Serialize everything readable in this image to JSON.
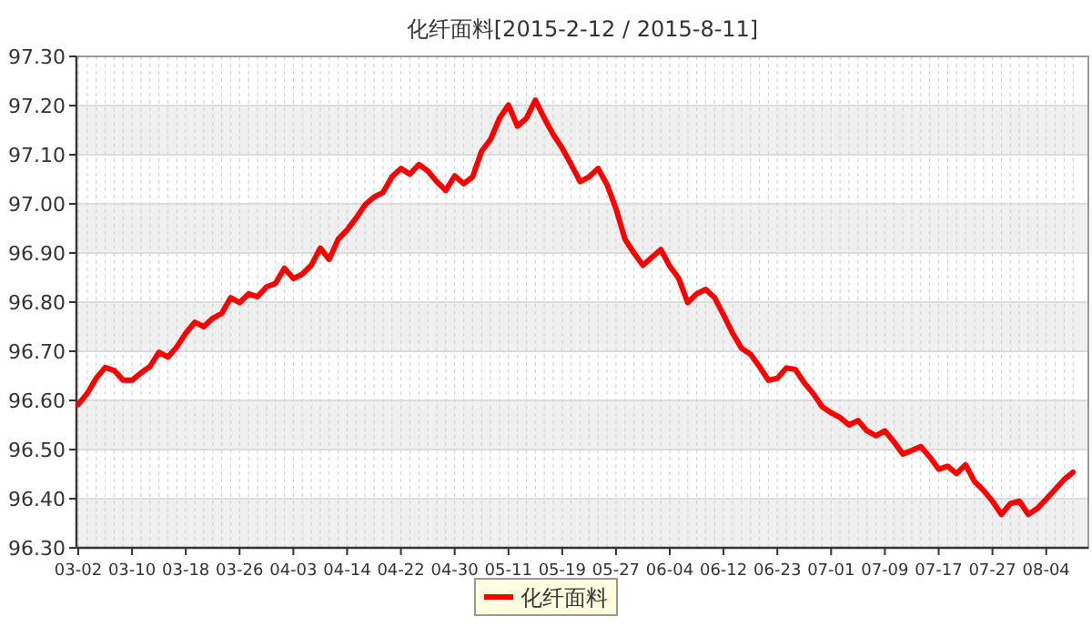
{
  "chart_data": {
    "type": "line",
    "title": "化纤面料[2015-2-12 / 2015-8-11]",
    "categories": [
      "03-02",
      null,
      null,
      null,
      null,
      null,
      "03-10",
      null,
      null,
      null,
      null,
      null,
      "03-18",
      null,
      null,
      null,
      null,
      null,
      "03-26",
      null,
      null,
      null,
      null,
      null,
      "04-03",
      null,
      null,
      null,
      null,
      null,
      "04-14",
      null,
      null,
      null,
      null,
      null,
      "04-22",
      null,
      null,
      null,
      null,
      null,
      "04-30",
      null,
      null,
      null,
      null,
      null,
      "05-11",
      null,
      null,
      null,
      null,
      null,
      "05-19",
      null,
      null,
      null,
      null,
      null,
      "05-27",
      null,
      null,
      null,
      null,
      null,
      "06-04",
      null,
      null,
      null,
      null,
      null,
      "06-12",
      null,
      null,
      null,
      null,
      null,
      "06-23",
      null,
      null,
      null,
      null,
      null,
      "07-01",
      null,
      null,
      null,
      null,
      null,
      "07-09",
      null,
      null,
      null,
      null,
      null,
      "07-17",
      null,
      null,
      null,
      null,
      null,
      "07-27",
      null,
      null,
      null,
      null,
      null,
      "08-04",
      null,
      null,
      null
    ],
    "series": [
      {
        "name": "化纤面料",
        "color": "#ff0000",
        "values": [
          96.592,
          96.614,
          96.645,
          96.667,
          96.661,
          96.641,
          96.641,
          96.656,
          96.669,
          96.698,
          96.688,
          96.709,
          96.737,
          96.759,
          96.75,
          96.767,
          96.777,
          96.809,
          96.799,
          96.817,
          96.811,
          96.831,
          96.838,
          96.869,
          96.848,
          96.857,
          96.875,
          96.91,
          96.887,
          96.928,
          96.947,
          96.971,
          96.998,
          97.014,
          97.023,
          97.055,
          97.072,
          97.06,
          97.08,
          97.067,
          97.045,
          97.027,
          97.057,
          97.041,
          97.055,
          97.107,
          97.131,
          97.174,
          97.201,
          97.158,
          97.174,
          97.211,
          97.174,
          97.141,
          97.113,
          97.08,
          97.045,
          97.055,
          97.072,
          97.039,
          96.99,
          96.928,
          96.9,
          96.875,
          96.891,
          96.907,
          96.873,
          96.848,
          96.799,
          96.817,
          96.826,
          96.809,
          96.774,
          96.737,
          96.706,
          96.694,
          96.669,
          96.641,
          96.645,
          96.666,
          96.663,
          96.636,
          96.614,
          96.587,
          96.575,
          96.565,
          96.55,
          96.559,
          96.538,
          96.528,
          96.538,
          96.516,
          96.491,
          96.498,
          96.506,
          96.485,
          96.46,
          96.466,
          96.451,
          96.469,
          96.435,
          96.417,
          96.395,
          96.368,
          96.39,
          96.395,
          96.368,
          96.38,
          96.399,
          96.419,
          96.439,
          96.454
        ]
      }
    ],
    "ylim": [
      96.3,
      97.3
    ],
    "yticks": [
      {
        "value": 96.3,
        "label": "96.30"
      },
      {
        "value": 96.4,
        "label": "96.40"
      },
      {
        "value": 96.5,
        "label": "96.50"
      },
      {
        "value": 96.6,
        "label": "96.60"
      },
      {
        "value": 96.7,
        "label": "96.70"
      },
      {
        "value": 96.8,
        "label": "96.80"
      },
      {
        "value": 96.9,
        "label": "96.90"
      },
      {
        "value": 97.0,
        "label": "97.00"
      },
      {
        "value": 97.1,
        "label": "97.10"
      },
      {
        "value": 97.2,
        "label": "97.20"
      },
      {
        "value": 97.3,
        "label": "97.30"
      }
    ],
    "grid": true,
    "legend": "bottom"
  }
}
